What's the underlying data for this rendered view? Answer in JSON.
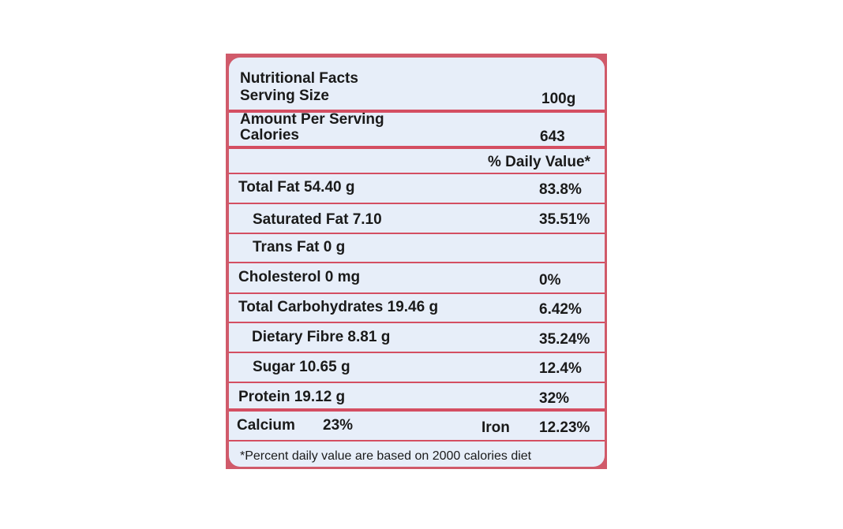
{
  "header": {
    "title": "Nutritional Facts",
    "serving_size_label": "Serving Size",
    "serving_size_value": "100g",
    "amount_per_serving": "Amount Per Serving",
    "calories_label": "Calories",
    "calories_value": "643",
    "daily_value_heading": "% Daily Value*"
  },
  "rows": [
    {
      "label": "Total Fat 54.40 g",
      "dv": "83.8%"
    },
    {
      "label": "Saturated Fat  7.10",
      "dv": "35.51%"
    },
    {
      "label": "Trans Fat 0 g",
      "dv": ""
    },
    {
      "label": "Cholesterol 0 mg",
      "dv": "0%"
    },
    {
      "label": "Total Carbohydrates 19.46 g",
      "dv": "6.42%"
    },
    {
      "label": "Dietary Fibre 8.81 g",
      "dv": "35.24%"
    },
    {
      "label": "Sugar 10.65 g",
      "dv": "12.4%"
    },
    {
      "label": "Protein 19.12 g",
      "dv": "32%"
    }
  ],
  "minerals": {
    "calcium_label": "Calcium",
    "calcium_value": "23%",
    "iron_label": "Iron",
    "iron_value": "12.23%"
  },
  "footnote": "*Percent daily value are based on 2000 calories diet",
  "colors": {
    "border": "#d05a6a",
    "background": "#e7eef9",
    "text": "#1a1a1a"
  }
}
